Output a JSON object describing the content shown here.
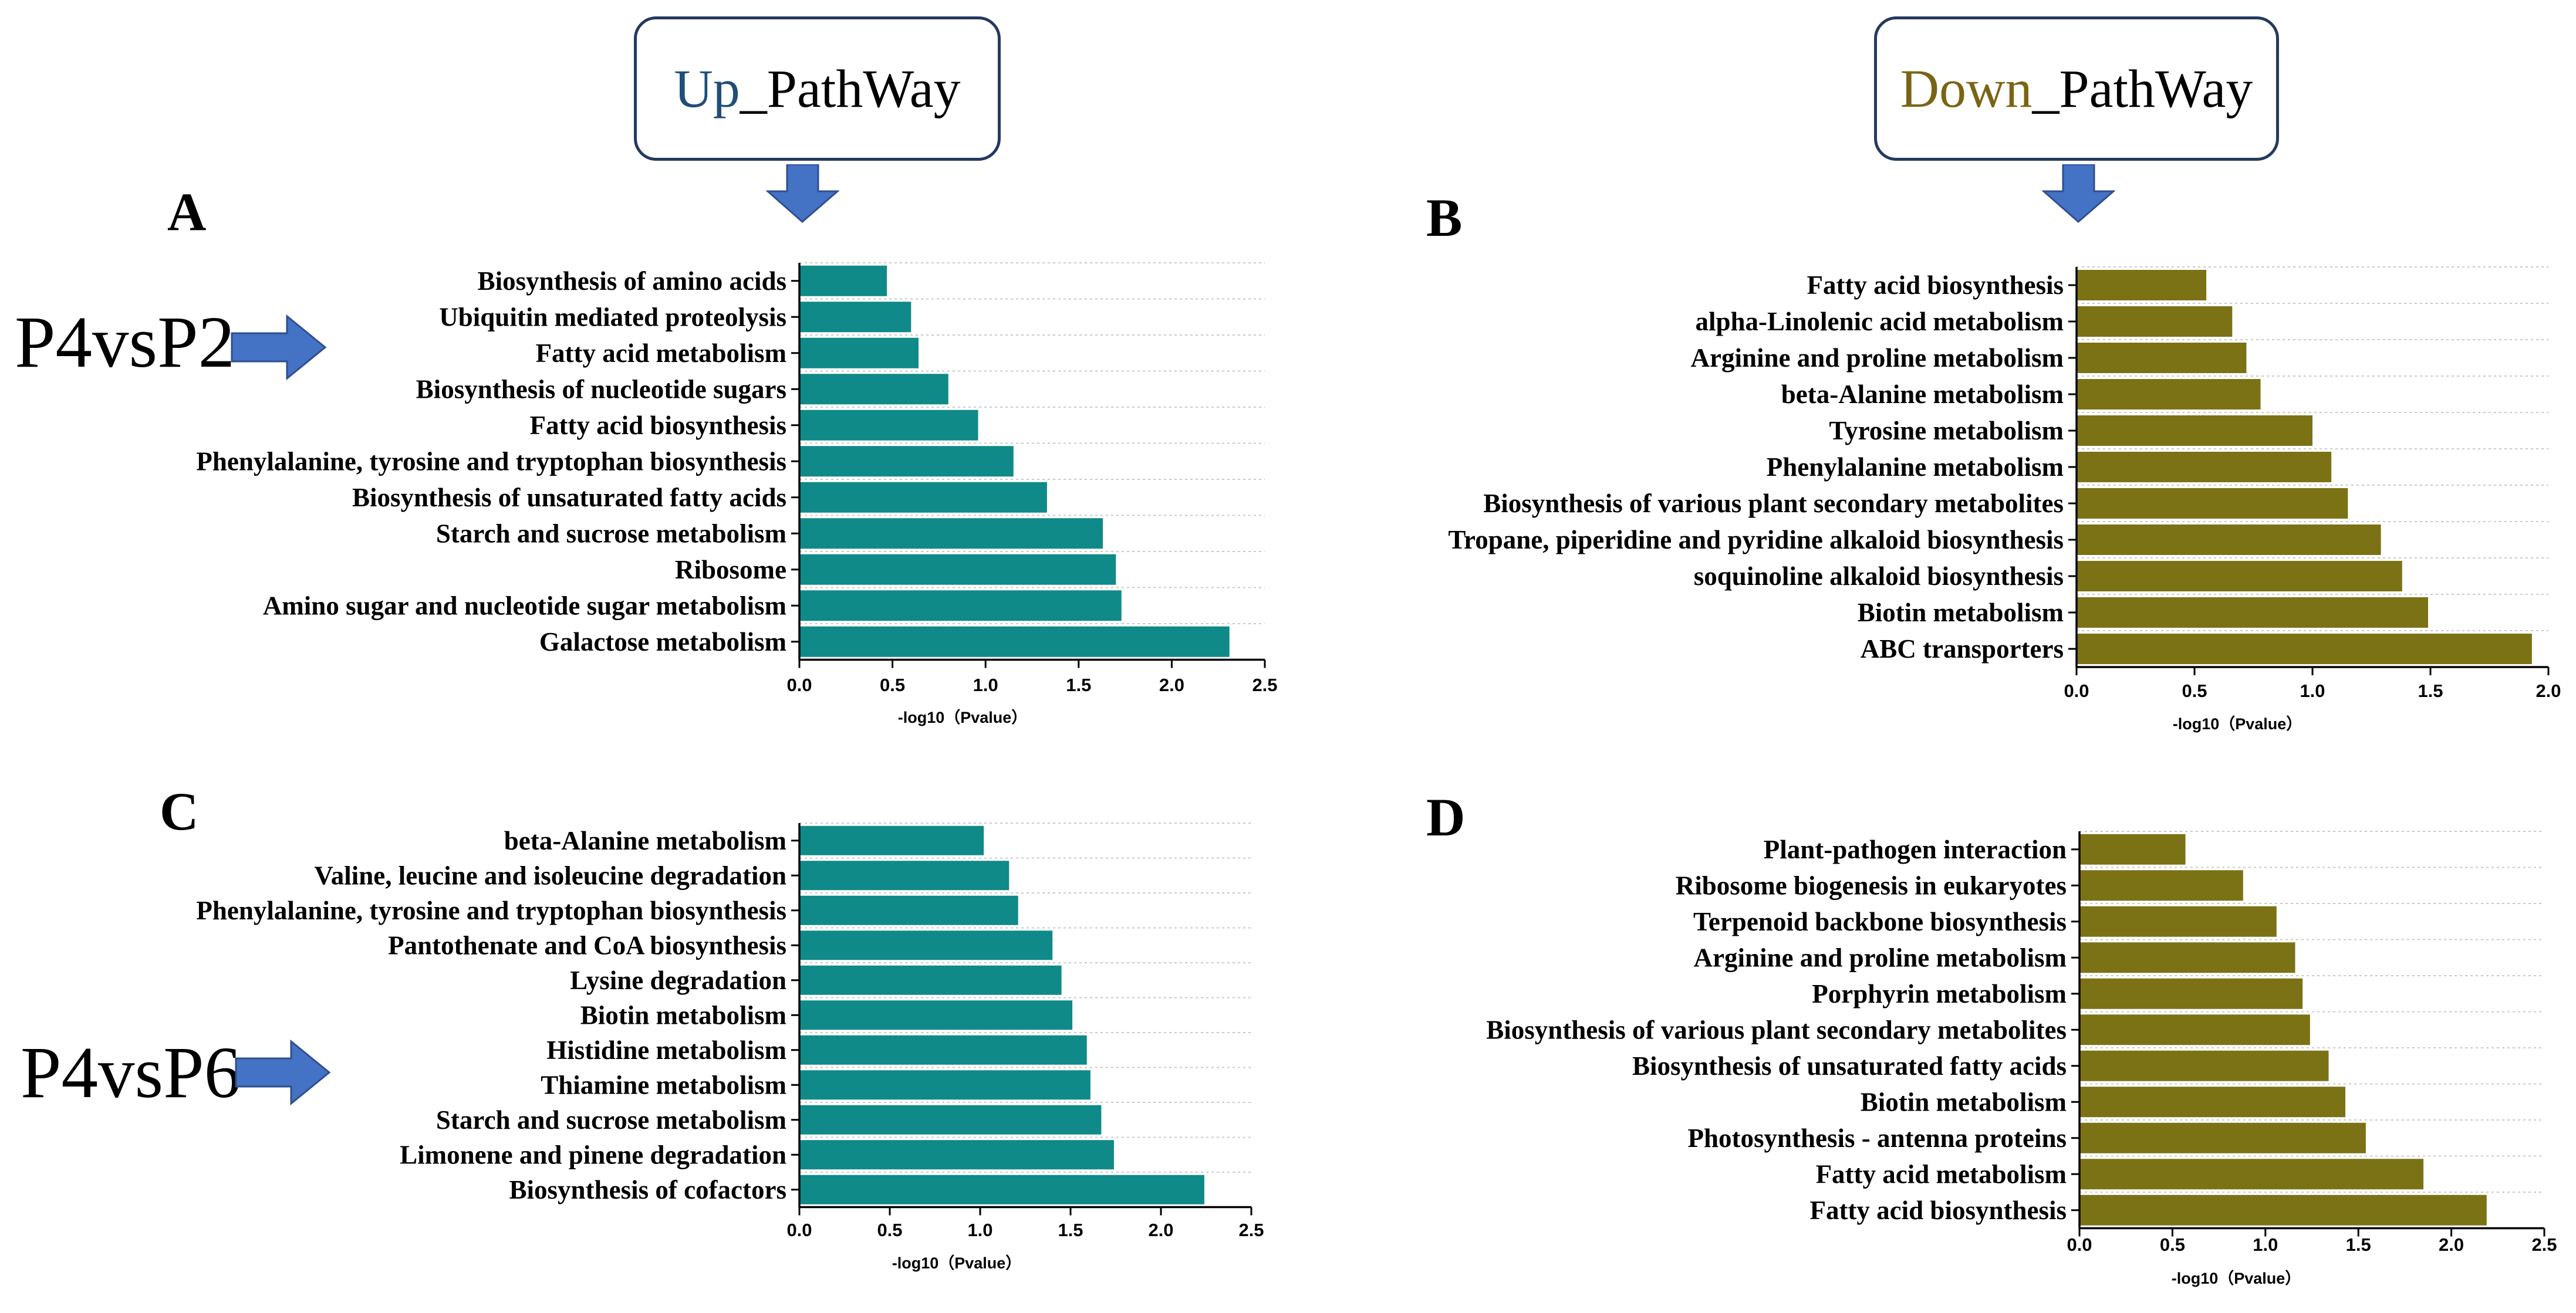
{
  "header": {
    "up": {
      "accent_word": "Up",
      "rest": "_PathWay",
      "accent_color": "#1f4e79"
    },
    "down": {
      "accent_word": "Down",
      "rest": "_PathWay",
      "accent_color": "#7a6414"
    }
  },
  "comparisons": {
    "top": "P4vsP2",
    "bottom": "P4vsP6"
  },
  "colors": {
    "up_bar": "#0f8a88",
    "down_bar": "#7b7216",
    "arrow_fill": "#4472c4",
    "arrow_stroke": "#2f4f8f"
  },
  "chart_data": [
    {
      "panel": "A",
      "type": "bar",
      "orientation": "horizontal",
      "title": "",
      "xlabel": "-log10（Pvalue）",
      "ylabel": "",
      "xlim": [
        0,
        2.5
      ],
      "xticks": [
        "0.0",
        "0.5",
        "1.0",
        "1.5",
        "2.0",
        "2.5"
      ],
      "categories": [
        "Biosynthesis of amino acids",
        "Ubiquitin mediated proteolysis",
        "Fatty acid metabolism",
        "Biosynthesis of nucleotide sugars",
        "Fatty acid biosynthesis",
        "Phenylalanine, tyrosine and tryptophan biosynthesis",
        "Biosynthesis of unsaturated fatty acids",
        "Starch and sucrose metabolism",
        "Ribosome",
        "Amino sugar and nucleotide sugar metabolism",
        "Galactose metabolism"
      ],
      "values": [
        0.47,
        0.6,
        0.64,
        0.8,
        0.96,
        1.15,
        1.33,
        1.63,
        1.7,
        1.73,
        2.31
      ]
    },
    {
      "panel": "B",
      "type": "bar",
      "orientation": "horizontal",
      "title": "",
      "xlabel": "-log10（Pvalue）",
      "ylabel": "",
      "xlim": [
        0,
        2.0
      ],
      "xticks": [
        "0.0",
        "0.5",
        "1.0",
        "1.5",
        "2.0"
      ],
      "categories": [
        "Fatty acid biosynthesis",
        "alpha-Linolenic acid metabolism",
        "Arginine and proline metabolism",
        "beta-Alanine metabolism",
        "Tyrosine metabolism",
        "Phenylalanine metabolism",
        "Biosynthesis of various plant secondary metabolites",
        "Tropane, piperidine and pyridine alkaloid biosynthesis",
        "soquinoline alkaloid biosynthesis",
        "Biotin metabolism",
        "ABC transporters"
      ],
      "values": [
        0.55,
        0.66,
        0.72,
        0.78,
        1.0,
        1.08,
        1.15,
        1.29,
        1.38,
        1.49,
        1.93
      ]
    },
    {
      "panel": "C",
      "type": "bar",
      "orientation": "horizontal",
      "title": "",
      "xlabel": "-log10（Pvalue）",
      "ylabel": "",
      "xlim": [
        0,
        2.5
      ],
      "xticks": [
        "0.0",
        "0.5",
        "1.0",
        "1.5",
        "2.0",
        "2.5"
      ],
      "categories": [
        "beta-Alanine metabolism",
        "Valine, leucine and isoleucine degradation",
        "Phenylalanine, tyrosine and tryptophan biosynthesis",
        "Pantothenate and CoA biosynthesis",
        "Lysine degradation",
        "Biotin metabolism",
        "Histidine metabolism",
        "Thiamine metabolism",
        "Starch and sucrose metabolism",
        "Limonene and pinene degradation",
        "Biosynthesis of cofactors"
      ],
      "values": [
        1.02,
        1.16,
        1.21,
        1.4,
        1.45,
        1.51,
        1.59,
        1.61,
        1.67,
        1.74,
        2.24
      ]
    },
    {
      "panel": "D",
      "type": "bar",
      "orientation": "horizontal",
      "title": "",
      "xlabel": "-log10（Pvalue）",
      "ylabel": "",
      "xlim": [
        0,
        2.5
      ],
      "xticks": [
        "0.0",
        "0.5",
        "1.0",
        "1.5",
        "2.0",
        "2.5"
      ],
      "categories": [
        "Plant-pathogen interaction",
        "Ribosome biogenesis in eukaryotes",
        "Terpenoid backbone biosynthesis",
        "Arginine and proline metabolism",
        "Porphyrin metabolism",
        "Biosynthesis of various plant secondary metabolites",
        "Biosynthesis of unsaturated fatty acids",
        "Biotin metabolism",
        "Photosynthesis - antenna proteins",
        "Fatty acid metabolism",
        "Fatty acid biosynthesis"
      ],
      "values": [
        0.57,
        0.88,
        1.06,
        1.16,
        1.2,
        1.24,
        1.34,
        1.43,
        1.54,
        1.85,
        2.19
      ]
    }
  ]
}
